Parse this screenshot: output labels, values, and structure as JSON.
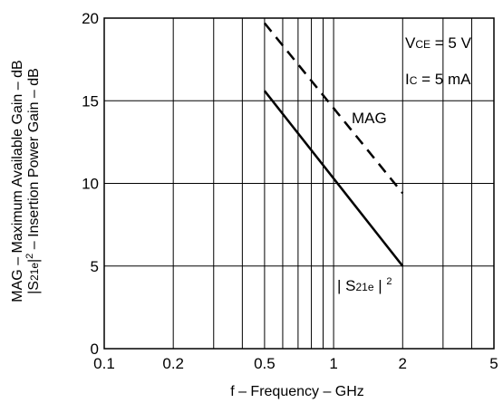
{
  "chart_data": {
    "type": "line",
    "x_scale": "log",
    "y_scale": "linear",
    "xlim": [
      0.1,
      5
    ],
    "ylim": [
      0,
      20
    ],
    "grid": true,
    "x_ticks": [
      {
        "value": 0.1,
        "label": "0.1"
      },
      {
        "value": 0.2,
        "label": "0.2"
      },
      {
        "value": 0.5,
        "label": "0.5"
      },
      {
        "value": 1,
        "label": "1"
      },
      {
        "value": 2,
        "label": "2"
      },
      {
        "value": 5,
        "label": "5"
      }
    ],
    "y_ticks": [
      {
        "value": 0,
        "label": "0"
      },
      {
        "value": 5,
        "label": "5"
      },
      {
        "value": 10,
        "label": "10"
      },
      {
        "value": 15,
        "label": "15"
      },
      {
        "value": 20,
        "label": "20"
      }
    ],
    "xlabel": "f – Frequency – GHz",
    "ylabel_line1": "MAG – Maximum Available Gain – dB",
    "ylabel_line2": {
      "pre": "|S",
      "sub": "21e",
      "mid": "|",
      "sup": "2",
      "post": " – Insertion Power Gain – dB"
    },
    "conditions": {
      "vce": {
        "main": "V",
        "sub": "CE",
        "rest": " = 5 V"
      },
      "ic": {
        "main": "I",
        "sub": "C",
        "rest": " = 5 mA"
      }
    },
    "series": [
      {
        "name": "MAG",
        "style": "dashed",
        "x": [
          0.5,
          2
        ],
        "y": [
          19.7,
          9.4
        ]
      },
      {
        "name_parts": {
          "pre": "| S",
          "sub": "21e",
          "mid": " | ",
          "sup": "2"
        },
        "style": "solid",
        "x": [
          0.5,
          2
        ],
        "y": [
          15.6,
          5.0
        ]
      }
    ]
  }
}
